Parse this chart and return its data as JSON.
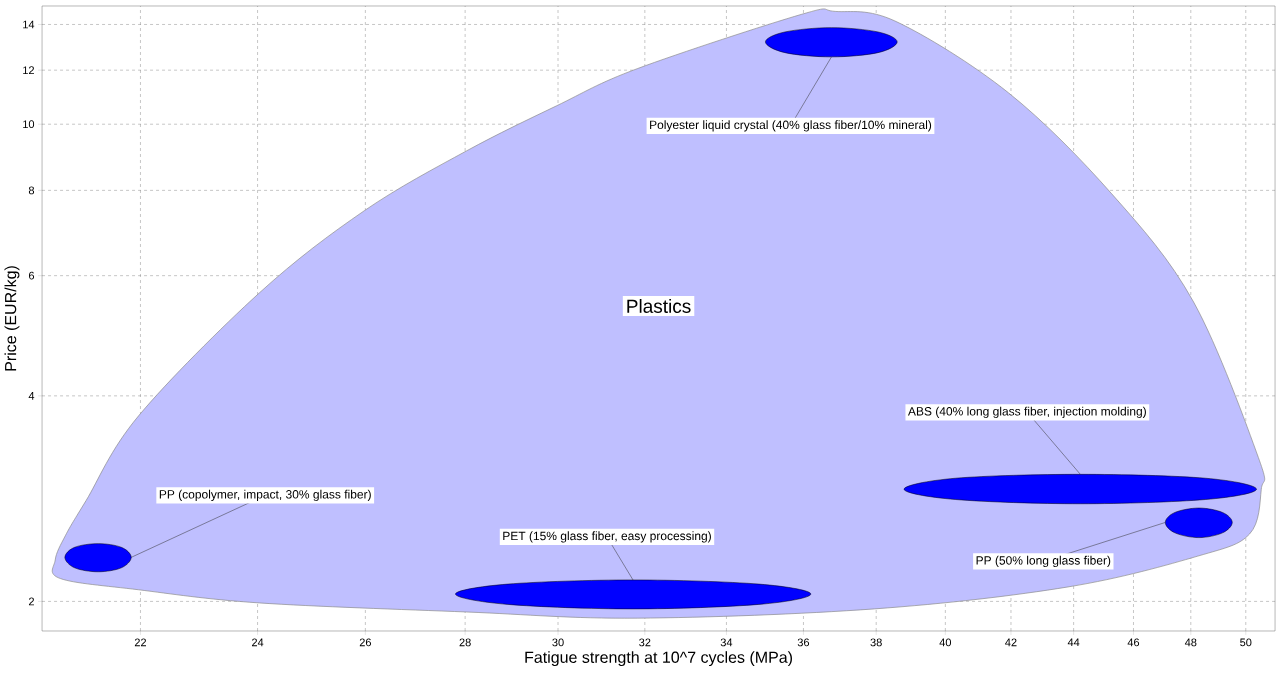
{
  "chart_data": {
    "type": "area",
    "xlabel": "Fatigue strength at 10^7 cycles (MPa)",
    "ylabel": "Price (EUR/kg)",
    "log": "xy",
    "grid": true,
    "xlim": [
      20.45,
      51.1
    ],
    "ylim": [
      1.81,
      14.9
    ],
    "xticks": [
      22,
      24,
      26,
      28,
      30,
      32,
      34,
      36,
      38,
      40,
      42,
      44,
      46,
      48,
      50
    ],
    "yticks": [
      2,
      4,
      6,
      8,
      10,
      12,
      14
    ],
    "series": [
      {
        "color": "#bfbfff",
        "x": [
          20.65,
          20.81,
          21.13,
          21.97,
          24.03,
          25.98,
          28.03,
          29.97,
          31.82,
          35.94,
          36.86,
          38.57,
          41.92,
          45.26,
          48.1,
          50.47,
          50.58,
          50.14,
          48.25,
          43.82,
          37.95,
          31.82,
          28.03,
          24.03,
          21.97,
          20.73
        ],
        "values": [
          2.3,
          2.5,
          2.81,
          3.74,
          5.66,
          7.47,
          9.14,
          10.64,
          12.06,
          14.48,
          14.63,
          14.14,
          11.12,
          7.91,
          5.49,
          3.25,
          2.92,
          2.51,
          2.33,
          2.1,
          1.95,
          1.89,
          1.93,
          1.99,
          2.08,
          2.16
        ]
      },
      {
        "color": "#0000ff",
        "x": [
          21.85,
          21.69,
          21.32,
          20.95,
          20.8,
          20.95,
          21.32,
          21.69
        ],
        "values": [
          2.32,
          2.4,
          2.43,
          2.4,
          2.32,
          2.24,
          2.21,
          2.24
        ]
      },
      {
        "color": "#0000ff",
        "x": [
          36.2,
          34.83,
          31.72,
          28.9,
          27.8,
          28.9,
          31.72,
          34.83
        ],
        "values": [
          2.05,
          2.12,
          2.15,
          2.12,
          2.05,
          1.98,
          1.95,
          1.98
        ]
      },
      {
        "color": "#0000ff",
        "x": [
          38.6,
          38.05,
          36.76,
          35.51,
          35.0,
          35.51,
          36.76,
          38.05
        ],
        "values": [
          13.2,
          13.65,
          13.85,
          13.65,
          13.2,
          12.73,
          12.55,
          12.73
        ]
      },
      {
        "color": "#0000ff",
        "x": [
          50.4,
          48.52,
          44.22,
          40.31,
          38.8,
          40.31,
          44.22,
          48.52
        ],
        "values": [
          2.92,
          3.03,
          3.07,
          3.03,
          2.92,
          2.82,
          2.78,
          2.82
        ]
      },
      {
        "color": "#0000ff",
        "x": [
          49.5,
          49.14,
          48.29,
          47.44,
          47.1,
          47.44,
          48.29,
          49.14
        ],
        "values": [
          2.61,
          2.7,
          2.74,
          2.7,
          2.61,
          2.52,
          2.48,
          2.52
        ]
      }
    ],
    "annotations": [
      {
        "text": "PP (copolymer, impact, 30% glass fiber)",
        "x": 21.85,
        "y": 2.32
      },
      {
        "text": "PET (15% glass fiber, easy processing)",
        "x": 31.72,
        "y": 2.15
      },
      {
        "text": "Polyester liquid crystal (40% glass fiber/10% mineral)",
        "x": 36.76,
        "y": 12.55
      },
      {
        "text": "ABS (40% long glass fiber, injection molding)",
        "x": 44.22,
        "y": 3.07
      },
      {
        "text": "PP (50% long glass fiber)",
        "x": 47.1,
        "y": 2.61
      },
      "Plastics"
    ]
  }
}
